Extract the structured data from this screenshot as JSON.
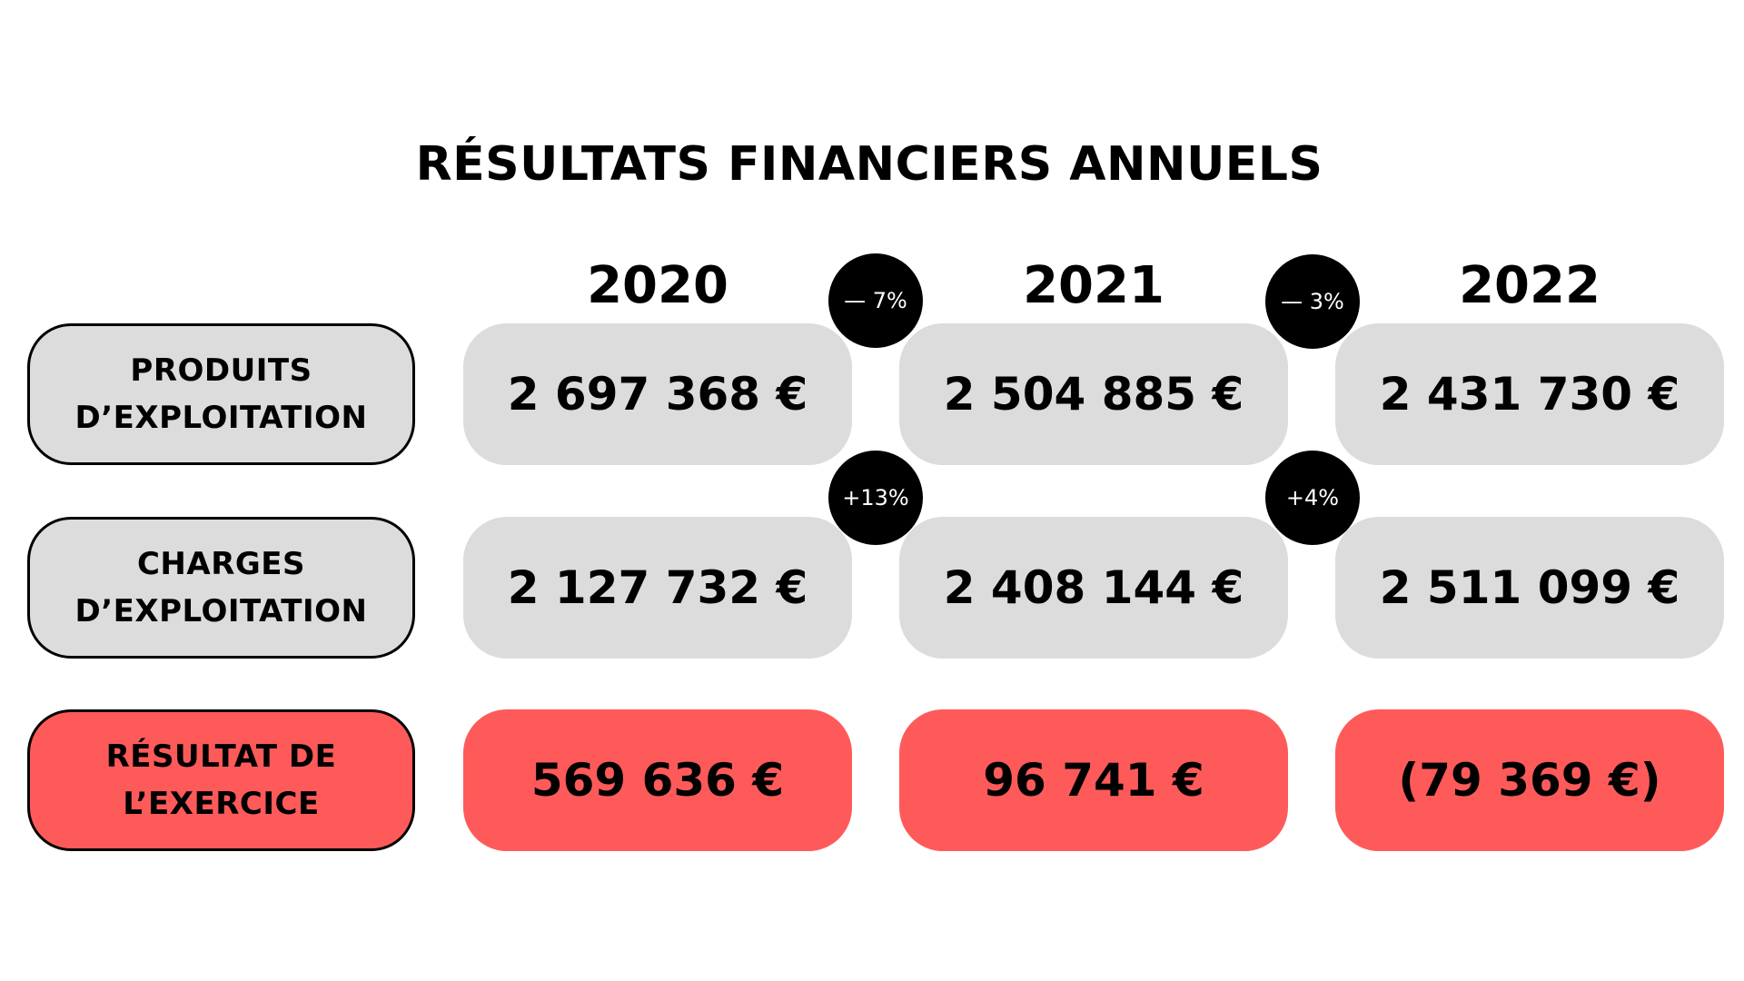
{
  "title": "RÉSULTATS FINANCIERS ANNUELS",
  "years": [
    "2020",
    "2021",
    "2022"
  ],
  "rows": [
    {
      "label": "PRODUITS\nD’EXPLOITATION",
      "values": [
        "2 697 368 €",
        "2 504 885 €",
        "2 431 730 €"
      ]
    },
    {
      "label": "CHARGES\nD’EXPLOITATION",
      "values": [
        "2 127 732 €",
        "2 408 144 €",
        "2 511 099 €"
      ]
    },
    {
      "label": "RÉSULTAT DE\nL’EXERCICE",
      "values": [
        "569 636 €",
        "96 741 €",
        "(79 369 €)"
      ]
    }
  ],
  "changes": {
    "produits": [
      "— 7%",
      "— 3%"
    ],
    "charges": [
      "+13%",
      "+4%"
    ]
  },
  "colors": {
    "grey": "#dcdcdc",
    "red": "#ff5a5a",
    "badge": "#000000"
  }
}
